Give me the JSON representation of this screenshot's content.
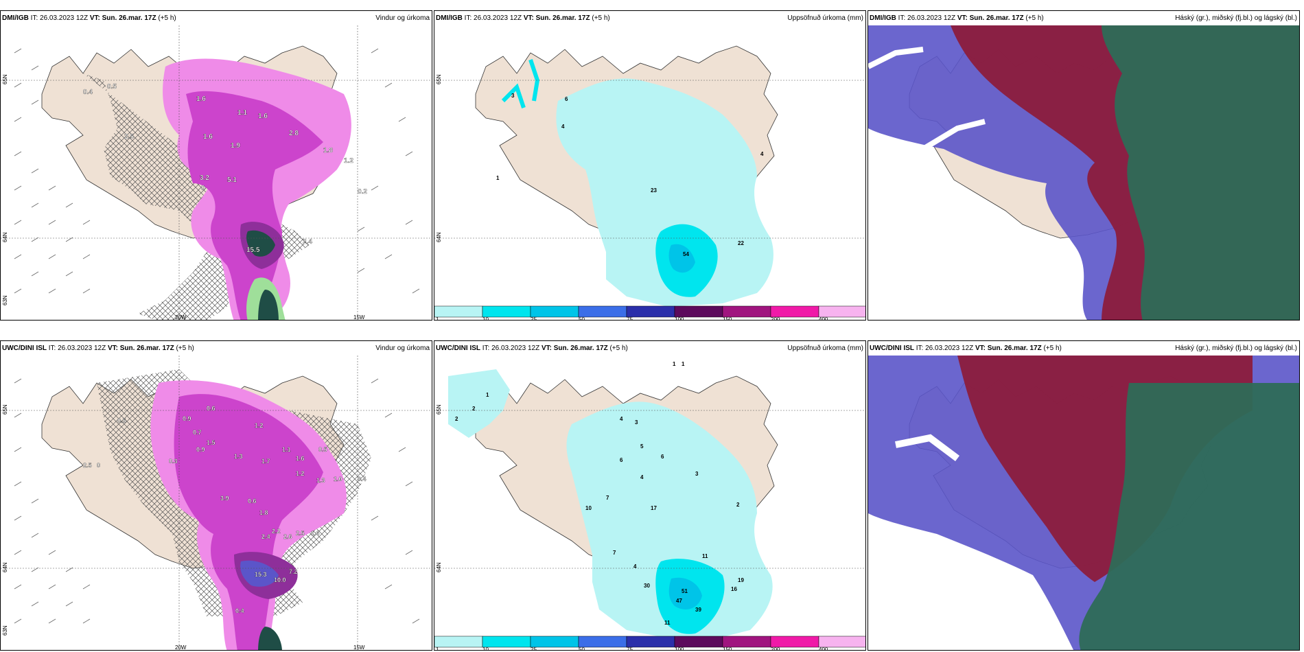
{
  "colors": {
    "land": "#efe1d4",
    "sea": "#ffffff",
    "precip_mag_light": "#ef8be8",
    "precip_mag": "#cc44cc",
    "precip_purple": "#8e2f9a",
    "precip_dark": "#1f4d46",
    "precip_green": "#9fdf9a",
    "accum_1": "#b8f4f4",
    "accum_10": "#00e5ee",
    "accum_25": "#00c4e8",
    "accum_50": "#3b6ee8",
    "accum_75": "#2b2faa",
    "accum_100": "#5c0a5c",
    "accum_150": "#a0157f",
    "accum_200": "#f01aa8",
    "accum_400": "#f7b3ef",
    "cloud_high": "#8c1c3c",
    "cloud_mid": "#5b55c9",
    "cloud_low": "#2e6b57"
  },
  "panels": [
    {
      "source": "DMI/IGB",
      "it_text": "IT: 26.03.2023 12Z",
      "vt_label": "VT:",
      "vt_value": "Sun. 26.mar. 17Z",
      "lead": "(+5 h)",
      "title": "Vindur og úrkoma",
      "lat_labels": [
        "65N",
        "64N",
        "63N"
      ],
      "lon_labels": [
        "20W",
        "15W"
      ],
      "values": [
        "0.5",
        "0.4",
        "1.6",
        "1.1",
        "1.6",
        "2.5",
        "1.6",
        "2.8",
        "1.9",
        "1.8",
        "1.2",
        "3.2",
        "5.1",
        "0",
        "0.2",
        "15.5",
        "2.4"
      ]
    },
    {
      "source": "DMI/IGB",
      "it_text": "IT: 26.03.2023 12Z",
      "vt_label": "VT:",
      "vt_value": "Sun. 26.mar. 17Z",
      "lead": "(+5 h)",
      "title": "Uppsöfnuð úrkoma (mm)",
      "lat_labels": [
        "65N",
        "64N"
      ],
      "values": [
        "3",
        "6",
        "4",
        "1",
        "4",
        "23",
        "54",
        "22"
      ],
      "colorbar": [
        "1",
        "10",
        "25",
        "50",
        "75",
        "100",
        "150",
        "200",
        "400"
      ]
    },
    {
      "source": "DMI/IGB",
      "it_text": "IT: 26.03.2023 12Z",
      "vt_label": "VT:",
      "vt_value": "Sun. 26.mar. 17Z",
      "lead": "(+5 h)",
      "title": "Háský (gr.), miðský (fj.bl.) og lágský (bl.)"
    },
    {
      "source": "UWC/DINI ISL",
      "it_text": "IT: 26.03.2023 12Z",
      "vt_label": "VT:",
      "vt_value": "Sun. 26.mar. 17Z",
      "lead": "(+5 h)",
      "title": "Vindur og úrkoma",
      "lat_labels": [
        "65N",
        "64N",
        "63N"
      ],
      "lon_labels": [
        "20W",
        "15W"
      ],
      "values": [
        "0.5",
        "0.9",
        "0.6",
        "0.7",
        "1.2",
        "1.5",
        "2.5",
        "0",
        "0.9",
        "1.1",
        "1.3",
        "1.7",
        "1.6",
        "0.5",
        "0.3",
        "1.2",
        "1.3",
        "1.0",
        "0.4",
        "3.9",
        "0.6",
        "1.8",
        "2.2",
        "2.4",
        "2.6",
        "2.5",
        "1.6",
        "15.3",
        "10.0",
        "7.2",
        "0.4"
      ]
    },
    {
      "source": "UWC/DINI ISL",
      "it_text": "IT: 26.03.2023 12Z",
      "vt_label": "VT:",
      "vt_value": "Sun. 26.mar. 17Z",
      "lead": "(+5 h)",
      "title": "Uppsöfnuð úrkoma (mm)",
      "lat_labels": [
        "65N",
        "64N"
      ],
      "values": [
        "2",
        "2",
        "1",
        "4",
        "3",
        "6",
        "5",
        "6",
        "4",
        "3",
        "2",
        "7",
        "10",
        "17",
        "7",
        "4",
        "30",
        "51",
        "47",
        "39",
        "16",
        "19",
        "11",
        "11",
        "1",
        "1"
      ],
      "colorbar": [
        "1",
        "10",
        "25",
        "50",
        "75",
        "100",
        "150",
        "200",
        "400"
      ]
    },
    {
      "source": "UWC/DINI ISL",
      "it_text": "IT: 26.03.2023 12Z",
      "vt_label": "VT:",
      "vt_value": "Sun. 26.mar. 17Z",
      "lead": "(+5 h)",
      "title": "Háský (gr.), miðský (fj.bl.) og lágský (bl.)"
    }
  ]
}
